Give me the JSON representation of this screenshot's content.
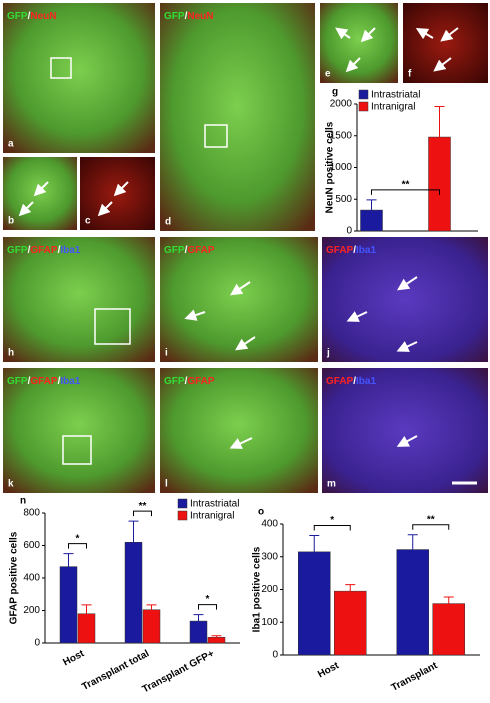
{
  "panels": [
    {
      "letter": "a",
      "label": [
        {
          "text": "GFP",
          "color": "#33dd33"
        },
        {
          "text": "/",
          "color": "#ffffff"
        },
        {
          "text": "NeuN",
          "color": "#ff2222"
        }
      ]
    },
    {
      "letter": "b"
    },
    {
      "letter": "c"
    },
    {
      "letter": "d",
      "label": [
        {
          "text": "GFP",
          "color": "#33dd33"
        },
        {
          "text": "/",
          "color": "#ffffff"
        },
        {
          "text": "NeuN",
          "color": "#ff2222"
        }
      ]
    },
    {
      "letter": "e"
    },
    {
      "letter": "f"
    },
    {
      "letter": "h",
      "label": [
        {
          "text": "GFP",
          "color": "#33dd33"
        },
        {
          "text": "/",
          "color": "#ffffff"
        },
        {
          "text": "GFAP",
          "color": "#ff2222"
        },
        {
          "text": "/",
          "color": "#ffffff"
        },
        {
          "text": "Iba1",
          "color": "#4455ff"
        }
      ]
    },
    {
      "letter": "i",
      "label": [
        {
          "text": "GFP",
          "color": "#33dd33"
        },
        {
          "text": "/",
          "color": "#ffffff"
        },
        {
          "text": "GFAP",
          "color": "#ff2222"
        }
      ]
    },
    {
      "letter": "j",
      "label": [
        {
          "text": "GFAP",
          "color": "#ff2222"
        },
        {
          "text": "/",
          "color": "#ffffff"
        },
        {
          "text": "Iba1",
          "color": "#4455ff"
        }
      ]
    },
    {
      "letter": "k",
      "label": [
        {
          "text": "GFP",
          "color": "#33dd33"
        },
        {
          "text": "/",
          "color": "#ffffff"
        },
        {
          "text": "GFAP",
          "color": "#ff2222"
        },
        {
          "text": "/",
          "color": "#ffffff"
        },
        {
          "text": "Iba1",
          "color": "#4455ff"
        }
      ]
    },
    {
      "letter": "l",
      "label": [
        {
          "text": "GFP",
          "color": "#33dd33"
        },
        {
          "text": "/",
          "color": "#ffffff"
        },
        {
          "text": "GFAP",
          "color": "#ff2222"
        }
      ]
    },
    {
      "letter": "m",
      "label": [
        {
          "text": "GFAP",
          "color": "#ff2222"
        },
        {
          "text": "/",
          "color": "#ffffff"
        },
        {
          "text": "Iba1",
          "color": "#4455ff"
        }
      ]
    }
  ],
  "chart_data": [
    {
      "type": "bar",
      "letter": "g",
      "ylabel": "NeuN positive cells",
      "categories": [
        null
      ],
      "series": [
        {
          "name": "Intrastriatal",
          "color": "#1a1a9e",
          "values": [
            330
          ],
          "errors": [
            160
          ]
        },
        {
          "name": "Intranigral",
          "color": "#ee1111",
          "values": [
            1480
          ],
          "errors": [
            480
          ]
        }
      ],
      "significance": [
        "**"
      ],
      "ylim": [
        0,
        2000
      ],
      "yticks": [
        0,
        500,
        1000,
        1500,
        2000
      ],
      "legend": "upper left"
    },
    {
      "type": "bar",
      "letter": "n",
      "ylabel": "GFAP positive cells",
      "categories": [
        "Host",
        "Transplant total",
        "Transplant GFP+"
      ],
      "series": [
        {
          "name": "Intrastriatal",
          "color": "#1a1a9e",
          "values": [
            470,
            620,
            135
          ],
          "errors": [
            80,
            130,
            40
          ]
        },
        {
          "name": "Intranigral",
          "color": "#ee1111",
          "values": [
            180,
            205,
            35
          ],
          "errors": [
            55,
            30,
            10
          ]
        }
      ],
      "significance": [
        "*",
        "**",
        "*"
      ],
      "ylim": [
        0,
        800
      ],
      "yticks": [
        0,
        200,
        400,
        600,
        800
      ],
      "legend": "upper right"
    },
    {
      "type": "bar",
      "letter": "o",
      "ylabel": "Iba1 positive cells",
      "categories": [
        "Host",
        "Transplant"
      ],
      "series": [
        {
          "color": "#1a1a9e",
          "values": [
            315,
            322
          ],
          "errors": [
            50,
            45
          ]
        },
        {
          "color": "#ee1111",
          "values": [
            195,
            157
          ],
          "errors": [
            20,
            20
          ]
        }
      ],
      "significance": [
        "*",
        "**"
      ],
      "ylim": [
        0,
        400
      ],
      "yticks": [
        0,
        100,
        200,
        300,
        400
      ]
    }
  ]
}
